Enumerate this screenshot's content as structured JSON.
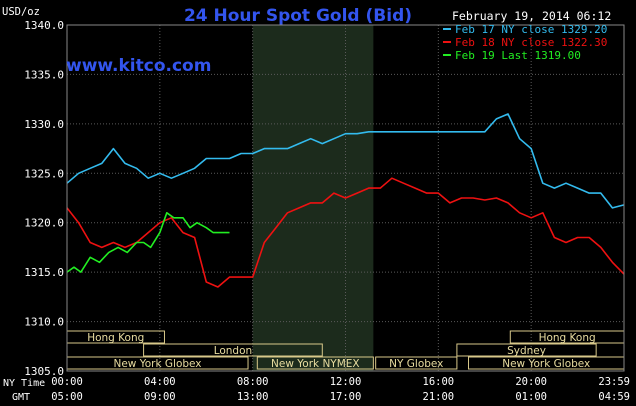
{
  "chart_data": {
    "type": "line",
    "title": "24 Hour Spot Gold (Bid)",
    "watermark": "www.kitco.com",
    "date": "February 19, 2014 06:12",
    "y_unit_label": "USD/oz",
    "ylim": [
      1305,
      1340
    ],
    "y_ticks": [
      "1340.0",
      "1335.0",
      "1330.0",
      "1325.0",
      "1320.0",
      "1315.0",
      "1310.0",
      "1305.0"
    ],
    "grid": true,
    "x_hours_range": [
      0,
      24
    ],
    "x_ticks_ny": [
      "00:00",
      "04:00",
      "08:00",
      "12:00",
      "16:00",
      "20:00",
      "23:59"
    ],
    "x_ticks_gmt": [
      "05:00",
      "09:00",
      "13:00",
      "17:00",
      "21:00",
      "01:00",
      "04:59"
    ],
    "x_row_labels": [
      "NY Time",
      "GMT"
    ],
    "shaded_hours": [
      [
        8.0,
        13.2
      ]
    ],
    "legend": [
      {
        "label": "Feb 17 NY close 1329.20",
        "color": "#33bbee"
      },
      {
        "label": "Feb 18 NY close 1322.30",
        "color": "#ee1111"
      },
      {
        "label": "Feb 19 Last 1319.00",
        "color": "#22ee22"
      }
    ],
    "sessions": [
      {
        "label": "Hong Kong",
        "start": 0.0,
        "end": 4.2,
        "row": 0
      },
      {
        "label": "Hong Kong",
        "start": 19.1,
        "end": 24.0,
        "row": 0
      },
      {
        "label": "London",
        "start": 3.3,
        "end": 11.0,
        "row": 1
      },
      {
        "label": "Sydney",
        "start": 16.8,
        "end": 22.8,
        "row": 1
      },
      {
        "label": "New York Globex",
        "start": 0.0,
        "end": 7.8,
        "row": 2
      },
      {
        "label": "New York NYMEX",
        "start": 8.2,
        "end": 13.2,
        "row": 2
      },
      {
        "label": "NY Globex",
        "start": 13.3,
        "end": 16.8,
        "row": 2
      },
      {
        "label": "New York Globex",
        "start": 17.3,
        "end": 24.0,
        "row": 2
      }
    ],
    "series": [
      {
        "name": "Feb 17",
        "color": "#33bbee",
        "x": [
          0,
          0.5,
          1,
          1.5,
          2,
          2.5,
          3,
          3.5,
          4,
          4.5,
          5,
          5.5,
          6,
          6.5,
          7,
          7.5,
          8,
          8.5,
          9,
          9.5,
          10,
          10.5,
          11,
          11.5,
          12,
          12.5,
          13,
          13.5,
          14,
          14.5,
          15,
          15.5,
          16,
          16.5,
          17,
          17.5,
          18,
          18.5,
          19,
          19.5,
          20,
          20.5,
          21,
          21.5,
          22,
          22.5,
          23,
          23.5,
          24
        ],
        "y": [
          1324,
          1325,
          1325.5,
          1326,
          1327.5,
          1326,
          1325.5,
          1324.5,
          1325,
          1324.5,
          1325,
          1325.5,
          1326.5,
          1326.5,
          1326.5,
          1327,
          1327,
          1327.5,
          1327.5,
          1327.5,
          1328,
          1328.5,
          1328,
          1328.5,
          1329,
          1329,
          1329.2,
          1329.2,
          1329.2,
          1329.2,
          1329.2,
          1329.2,
          1329.2,
          1329.2,
          1329.2,
          1329.2,
          1329.2,
          1330.5,
          1331,
          1328.5,
          1327.5,
          1324,
          1323.5,
          1324,
          1323.5,
          1323,
          1323,
          1321.5,
          1321.8
        ]
      },
      {
        "name": "Feb 18",
        "color": "#ee1111",
        "x": [
          0,
          0.5,
          1,
          1.5,
          2,
          2.5,
          3,
          3.5,
          4,
          4.5,
          5,
          5.5,
          6,
          6.5,
          7,
          7.5,
          8,
          8.5,
          9,
          9.5,
          10,
          10.5,
          11,
          11.5,
          12,
          12.5,
          13,
          13.5,
          14,
          14.5,
          15,
          15.5,
          16,
          16.5,
          17,
          17.5,
          18,
          18.5,
          19,
          19.5,
          20,
          20.5,
          21,
          21.5,
          22,
          22.5,
          23,
          23.5,
          24
        ],
        "y": [
          1321.5,
          1320,
          1318,
          1317.5,
          1318,
          1317.5,
          1318,
          1319,
          1320,
          1320.5,
          1319,
          1318.5,
          1314,
          1313.5,
          1314.5,
          1314.5,
          1314.5,
          1318,
          1319.5,
          1321,
          1321.5,
          1322,
          1322,
          1323,
          1322.5,
          1323,
          1323.5,
          1323.5,
          1324.5,
          1324,
          1323.5,
          1323,
          1323,
          1322,
          1322.5,
          1322.5,
          1322.3,
          1322.5,
          1322,
          1321,
          1320.5,
          1321,
          1318.5,
          1318,
          1318.5,
          1318.5,
          1317.5,
          1316,
          1314.8
        ]
      },
      {
        "name": "Feb 19",
        "color": "#22ee22",
        "x": [
          0,
          0.3,
          0.6,
          1,
          1.4,
          1.8,
          2.2,
          2.6,
          3,
          3.3,
          3.6,
          4,
          4.3,
          4.6,
          5,
          5.3,
          5.6,
          6,
          6.3,
          6.6,
          7
        ],
        "y": [
          1315,
          1315.5,
          1315,
          1316.5,
          1316,
          1317,
          1317.5,
          1317,
          1318,
          1318,
          1317.5,
          1319,
          1321,
          1320.5,
          1320.5,
          1319.5,
          1320,
          1319.5,
          1319,
          1319,
          1319
        ]
      }
    ]
  }
}
